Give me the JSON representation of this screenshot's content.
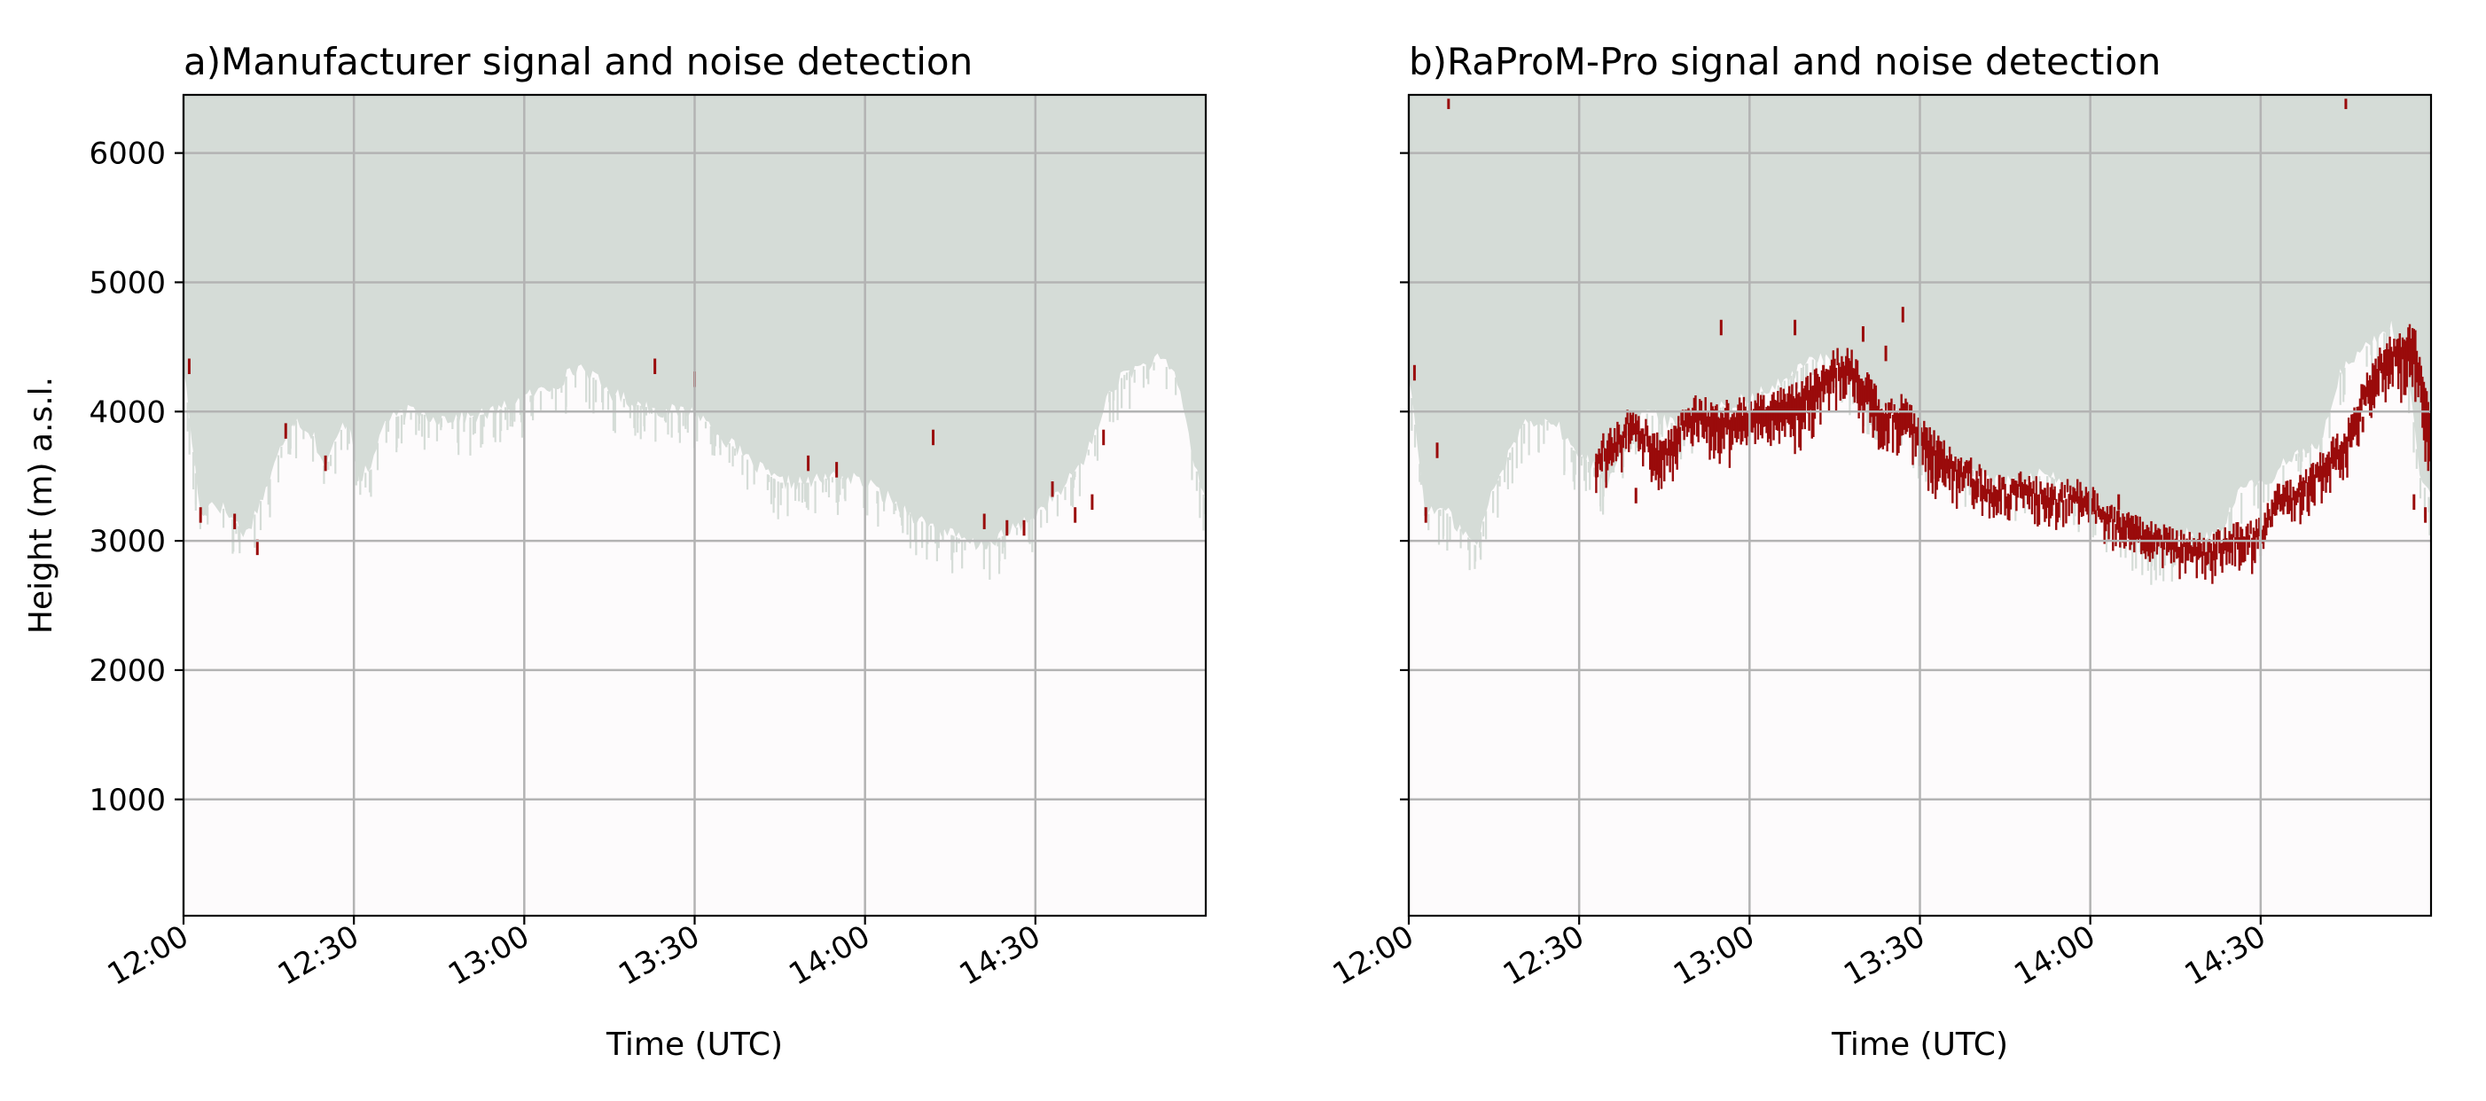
{
  "chart_data": [
    {
      "type": "heatmap",
      "panel": "a",
      "title": "a)Manufacturer signal and noise detection",
      "xlabel": "Time (UTC)",
      "ylabel": "Height (m) a.s.l.",
      "x_ticks": [
        "12:00",
        "12:30",
        "13:00",
        "13:30",
        "14:00",
        "14:30"
      ],
      "y_ticks": [
        "1000",
        "2000",
        "3000",
        "4000",
        "5000",
        "6000"
      ],
      "show_y_tick_labels": true,
      "xlim_minutes": [
        0,
        180
      ],
      "ylim": [
        100,
        6450
      ],
      "grid": true,
      "colors": {
        "background": "#fdfbfc",
        "noise": "#d5dcd7",
        "signal": "#9a0b0b",
        "grid": "#b3b3b3"
      },
      "noise_boundary": {
        "minutes": [
          0,
          3,
          5,
          7,
          9,
          11,
          13,
          15,
          17,
          19,
          21,
          23,
          25,
          27,
          29,
          31,
          33,
          35,
          37,
          40,
          45,
          50,
          55,
          60,
          65,
          70,
          75,
          80,
          85,
          90,
          95,
          100,
          105,
          110,
          115,
          120,
          125,
          130,
          135,
          140,
          145,
          150,
          155,
          160,
          163,
          166,
          169,
          172,
          175,
          178,
          180
        ],
        "height_m": [
          4350,
          3200,
          3300,
          3250,
          3150,
          3050,
          3250,
          3450,
          3700,
          3950,
          3900,
          3800,
          3550,
          3800,
          3950,
          3500,
          3550,
          3900,
          3950,
          4000,
          3950,
          3950,
          4000,
          4100,
          4200,
          4350,
          4150,
          4050,
          4000,
          4000,
          3800,
          3600,
          3450,
          3450,
          3500,
          3450,
          3300,
          3150,
          3050,
          2950,
          3050,
          3200,
          3400,
          3750,
          4150,
          4300,
          4350,
          4400,
          4250,
          3600,
          3300
        ]
      },
      "signal_ticks": [
        {
          "minute": 1,
          "height_m": 4350
        },
        {
          "minute": 3,
          "height_m": 3200
        },
        {
          "minute": 9,
          "height_m": 3150
        },
        {
          "minute": 13,
          "height_m": 2950
        },
        {
          "minute": 18,
          "height_m": 3850
        },
        {
          "minute": 25,
          "height_m": 3600
        },
        {
          "minute": 83,
          "height_m": 4350
        },
        {
          "minute": 90,
          "height_m": 4250
        },
        {
          "minute": 110,
          "height_m": 3600
        },
        {
          "minute": 115,
          "height_m": 3550
        },
        {
          "minute": 132,
          "height_m": 3800
        },
        {
          "minute": 141,
          "height_m": 3150
        },
        {
          "minute": 145,
          "height_m": 3100
        },
        {
          "minute": 148,
          "height_m": 3100
        },
        {
          "minute": 153,
          "height_m": 3400
        },
        {
          "minute": 157,
          "height_m": 3200
        },
        {
          "minute": 160,
          "height_m": 3300
        },
        {
          "minute": 162,
          "height_m": 3800
        }
      ]
    },
    {
      "type": "heatmap",
      "panel": "b",
      "title": "b)RaProM-Pro signal and noise detection",
      "xlabel": "Time (UTC)",
      "ylabel": "",
      "x_ticks": [
        "12:00",
        "12:30",
        "13:00",
        "13:30",
        "14:00",
        "14:30"
      ],
      "y_ticks": [
        "1000",
        "2000",
        "3000",
        "4000",
        "5000",
        "6000"
      ],
      "show_y_tick_labels": false,
      "xlim_minutes": [
        0,
        180
      ],
      "ylim": [
        100,
        6450
      ],
      "grid": true,
      "colors": {
        "background": "#fdfbfc",
        "noise": "#d5dcd7",
        "signal": "#9a0b0b",
        "grid": "#b3b3b3"
      },
      "noise_boundary": {
        "minutes": [
          0,
          3,
          6,
          9,
          12,
          14,
          17,
          20,
          23,
          26,
          29,
          32,
          35,
          38,
          41,
          44,
          47,
          50,
          53,
          56,
          59,
          62,
          65,
          68,
          71,
          74,
          77,
          80,
          83,
          86,
          89,
          92,
          95,
          98,
          101,
          104,
          107,
          110,
          113,
          116,
          119,
          122,
          125,
          128,
          131,
          134,
          137,
          140,
          143,
          146,
          149,
          152,
          155,
          158,
          161,
          164,
          167,
          170,
          173,
          176,
          178,
          180
        ],
        "height_m": [
          4300,
          3200,
          3250,
          3100,
          2950,
          3300,
          3600,
          3900,
          3950,
          3900,
          3700,
          3600,
          3450,
          3800,
          4000,
          3950,
          3900,
          3950,
          4000,
          4050,
          4100,
          4150,
          4200,
          4300,
          4400,
          4450,
          4300,
          4150,
          4050,
          4000,
          3800,
          3700,
          3650,
          3550,
          3550,
          3450,
          3450,
          3500,
          3500,
          3400,
          3300,
          3200,
          3100,
          3000,
          2950,
          2950,
          3050,
          3000,
          3100,
          3350,
          3450,
          3450,
          3650,
          3700,
          3800,
          4300,
          4450,
          4550,
          4650,
          4300,
          3500,
          3300
        ]
      },
      "signal_band": {
        "minutes": [
          33,
          36,
          39,
          42,
          45,
          48,
          51,
          54,
          57,
          60,
          63,
          66,
          69,
          72,
          75,
          78,
          81,
          84,
          87,
          90,
          93,
          96,
          99,
          102,
          105,
          108,
          111,
          114,
          117,
          120,
          123,
          126,
          129,
          132,
          135,
          138,
          141,
          144,
          147,
          150,
          153,
          156,
          159,
          162,
          165,
          168,
          171,
          174,
          177,
          180
        ],
        "height_m": [
          3700,
          3800,
          3950,
          3850,
          3700,
          3950,
          4050,
          4000,
          4000,
          4050,
          4050,
          4100,
          4150,
          4250,
          4400,
          4400,
          4200,
          4000,
          4050,
          3900,
          3750,
          3600,
          3550,
          3450,
          3400,
          3450,
          3400,
          3350,
          3400,
          3350,
          3200,
          3150,
          3100,
          3050,
          3000,
          3000,
          2950,
          3050,
          3050,
          3100,
          3350,
          3400,
          3500,
          3700,
          3800,
          4200,
          4400,
          4550,
          4600,
          3900
        ],
        "depth_m": [
          250,
          250,
          200,
          250,
          300,
          250,
          250,
          300,
          300,
          300,
          300,
          300,
          350,
          300,
          300,
          300,
          350,
          300,
          250,
          300,
          300,
          250,
          200,
          200,
          200,
          200,
          200,
          200,
          200,
          200,
          200,
          200,
          200,
          200,
          200,
          200,
          200,
          200,
          250,
          200,
          200,
          200,
          250,
          250,
          300,
          250,
          300,
          350,
          450,
          450
        ]
      },
      "signal_ticks": [
        {
          "minute": 1,
          "height_m": 4300
        },
        {
          "minute": 3,
          "height_m": 3200
        },
        {
          "minute": 5,
          "height_m": 3700
        },
        {
          "minute": 33,
          "height_m": 3550
        },
        {
          "minute": 40,
          "height_m": 3350
        },
        {
          "minute": 55,
          "height_m": 4650
        },
        {
          "minute": 68,
          "height_m": 4650
        },
        {
          "minute": 73,
          "height_m": 4300
        },
        {
          "minute": 80,
          "height_m": 4600
        },
        {
          "minute": 84,
          "height_m": 4450
        },
        {
          "minute": 87,
          "height_m": 4750
        },
        {
          "minute": 104,
          "height_m": 3450
        },
        {
          "minute": 112,
          "height_m": 3350
        },
        {
          "minute": 125,
          "height_m": 3300
        },
        {
          "minute": 140,
          "height_m": 2950
        },
        {
          "minute": 157,
          "height_m": 3450
        },
        {
          "minute": 168,
          "height_m": 3900
        },
        {
          "minute": 177,
          "height_m": 3300
        },
        {
          "minute": 179,
          "height_m": 3200
        }
      ],
      "outlier_points": [
        {
          "minute": 7,
          "height_m": 6380
        },
        {
          "minute": 165,
          "height_m": 6380
        }
      ]
    }
  ]
}
